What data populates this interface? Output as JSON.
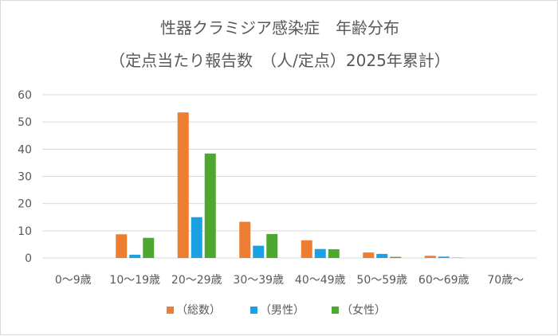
{
  "chart_data": {
    "type": "bar",
    "title": "性器クラミジア感染症　年齢分布",
    "subtitle": "（定点当たり報告数　（人/定点）2025年累計）",
    "categories": [
      "0～9歳",
      "10～19歳",
      "20～29歳",
      "30～39歳",
      "40～49歳",
      "50～59歳",
      "60～69歳",
      "70歳～"
    ],
    "series": [
      {
        "name": "（総数）",
        "color": "#ED7D31",
        "values": [
          0,
          8.7,
          53.5,
          13.3,
          6.5,
          2.0,
          0.8,
          0
        ]
      },
      {
        "name": "（男性）",
        "color": "#1BA1E2",
        "values": [
          0,
          1.2,
          15.0,
          4.5,
          3.3,
          1.5,
          0.5,
          0
        ]
      },
      {
        "name": "（女性）",
        "color": "#4EA72E",
        "values": [
          0,
          7.4,
          38.4,
          8.8,
          3.2,
          0.4,
          0.1,
          0
        ]
      }
    ],
    "xlabel": "",
    "ylabel": "",
    "ylim": [
      0,
      60
    ],
    "yticks": [
      "0",
      "10",
      "20",
      "30",
      "40",
      "50",
      "60"
    ],
    "grid": true,
    "legend": "bottom"
  }
}
